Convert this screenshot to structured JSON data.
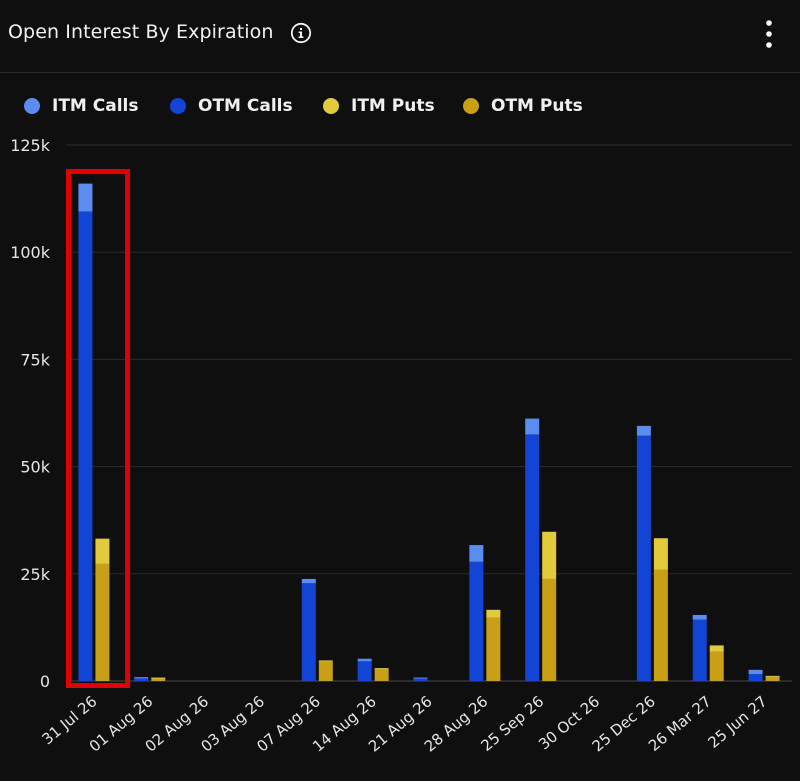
{
  "header": {
    "title": "Open Interest By Expiration",
    "info_icon": "info-circle-icon",
    "menu_icon": "more-vertical-icon"
  },
  "legend": [
    {
      "label": "ITM Calls",
      "color": "#5b8cf0"
    },
    {
      "label": "OTM Calls",
      "color": "#1244d6"
    },
    {
      "label": "ITM Puts",
      "color": "#e2cb3a"
    },
    {
      "label": "OTM Puts",
      "color": "#c9a015"
    }
  ],
  "chart_data": {
    "type": "bar",
    "stacked": true,
    "categories": [
      "31 Jul 26",
      "01 Aug 26",
      "02 Aug 26",
      "03 Aug 26",
      "07 Aug 26",
      "14 Aug 26",
      "21 Aug 26",
      "28 Aug 26",
      "25 Sep 26",
      "30 Oct 26",
      "25 Dec 26",
      "26 Mar 27",
      "25 Jun 27"
    ],
    "series": [
      {
        "name": "OTM Calls",
        "stack": "calls",
        "color": "#1244d6",
        "values": [
          109500,
          600,
          0,
          0,
          22800,
          4600,
          600,
          27800,
          57500,
          0,
          57200,
          14300,
          1600
        ]
      },
      {
        "name": "ITM Calls",
        "stack": "calls",
        "color": "#5b8cf0",
        "values": [
          6500,
          300,
          0,
          0,
          1000,
          600,
          200,
          3900,
          3700,
          0,
          2300,
          1100,
          1000
        ]
      },
      {
        "name": "OTM Puts",
        "stack": "puts",
        "color": "#c9a015",
        "values": [
          27300,
          600,
          0,
          0,
          4500,
          2700,
          0,
          14800,
          23800,
          0,
          26000,
          6800,
          1000
        ]
      },
      {
        "name": "ITM Puts",
        "stack": "puts",
        "color": "#e2cb3a",
        "values": [
          5900,
          200,
          0,
          0,
          300,
          300,
          0,
          1800,
          11000,
          0,
          7300,
          1500,
          200
        ]
      }
    ],
    "ylim": [
      0,
      125000
    ],
    "yticks": [
      0,
      25000,
      50000,
      75000,
      100000,
      125000
    ],
    "ytick_labels": [
      "0",
      "25k",
      "50k",
      "75k",
      "100k",
      "125k"
    ],
    "grid": true,
    "legend_position": "top-left",
    "highlighted_category": "31 Jul 26",
    "highlight_color": "#e00000"
  }
}
